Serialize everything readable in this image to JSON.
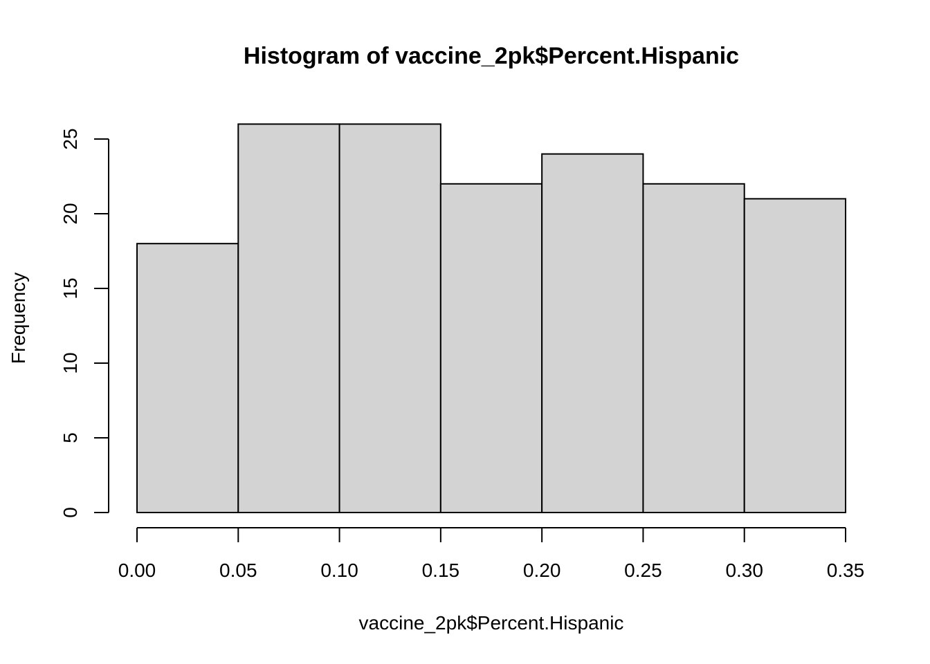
{
  "chart_data": {
    "type": "bar",
    "title": "Histogram of vaccine_2pk$Percent.Hispanic",
    "xlabel": "vaccine_2pk$Percent.Hispanic",
    "ylabel": "Frequency",
    "bins": [
      {
        "start": 0.0,
        "end": 0.05,
        "value": 18
      },
      {
        "start": 0.05,
        "end": 0.1,
        "value": 26
      },
      {
        "start": 0.1,
        "end": 0.15,
        "value": 26
      },
      {
        "start": 0.15,
        "end": 0.2,
        "value": 22
      },
      {
        "start": 0.2,
        "end": 0.25,
        "value": 24
      },
      {
        "start": 0.25,
        "end": 0.3,
        "value": 22
      },
      {
        "start": 0.3,
        "end": 0.35,
        "value": 21
      }
    ],
    "xlim": [
      0.0,
      0.35
    ],
    "ylim": [
      0,
      25
    ],
    "x_ticks": [
      0.0,
      0.05,
      0.1,
      0.15,
      0.2,
      0.25,
      0.3,
      0.35
    ],
    "x_tick_labels": [
      "0.00",
      "0.05",
      "0.10",
      "0.15",
      "0.20",
      "0.25",
      "0.30",
      "0.35"
    ],
    "y_ticks": [
      0,
      5,
      10,
      15,
      20,
      25
    ],
    "y_tick_labels": [
      "0",
      "5",
      "10",
      "15",
      "20",
      "25"
    ],
    "grid": false,
    "legend": "none",
    "colors": {
      "bar_fill": "#d3d3d3",
      "bar_stroke": "#000000",
      "axis": "#000000",
      "background": "#ffffff"
    }
  }
}
